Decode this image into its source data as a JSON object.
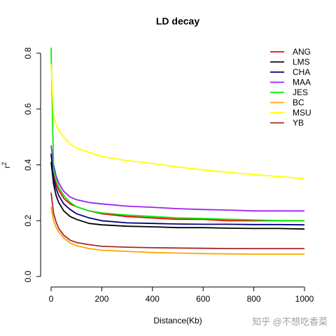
{
  "chart_data": {
    "type": "line",
    "title": "LD decay",
    "xlabel": "Distance(Kb)",
    "ylabel": "r2",
    "xlim": [
      0,
      1000
    ],
    "ylim": [
      0,
      0.8
    ],
    "x_ticks": [
      0,
      200,
      400,
      600,
      800,
      1000
    ],
    "y_ticks": [
      0.0,
      0.2,
      0.4,
      0.6,
      0.8
    ],
    "x_tick_labels": [
      "0",
      "200",
      "400",
      "600",
      "800",
      "1000"
    ],
    "y_tick_labels": [
      "0.0",
      "0.2",
      "0.4",
      "0.6",
      "0.8"
    ],
    "grid": false,
    "legend_position": "top-right",
    "x": [
      0,
      10,
      20,
      30,
      50,
      75,
      100,
      150,
      200,
      300,
      400,
      500,
      600,
      700,
      800,
      900,
      1000
    ],
    "series": [
      {
        "name": "ANG",
        "color": "#ff0000",
        "values": [
          0.44,
          0.36,
          0.33,
          0.31,
          0.28,
          0.26,
          0.25,
          0.235,
          0.225,
          0.215,
          0.21,
          0.205,
          0.205,
          0.2,
          0.2,
          0.2,
          0.2
        ]
      },
      {
        "name": "LMS",
        "color": "#000000",
        "values": [
          0.41,
          0.33,
          0.29,
          0.265,
          0.235,
          0.215,
          0.205,
          0.19,
          0.185,
          0.18,
          0.178,
          0.175,
          0.175,
          0.173,
          0.172,
          0.172,
          0.17
        ]
      },
      {
        "name": "CHA",
        "color": "#000080",
        "values": [
          0.44,
          0.35,
          0.315,
          0.29,
          0.26,
          0.24,
          0.225,
          0.21,
          0.2,
          0.192,
          0.19,
          0.188,
          0.187,
          0.187,
          0.186,
          0.186,
          0.185
        ]
      },
      {
        "name": "MAA",
        "color": "#a020f0",
        "values": [
          0.47,
          0.4,
          0.36,
          0.335,
          0.305,
          0.285,
          0.275,
          0.265,
          0.26,
          0.252,
          0.248,
          0.243,
          0.24,
          0.238,
          0.235,
          0.235,
          0.235
        ]
      },
      {
        "name": "JES",
        "color": "#00ee00",
        "values": [
          0.82,
          0.38,
          0.345,
          0.32,
          0.29,
          0.265,
          0.25,
          0.235,
          0.228,
          0.22,
          0.215,
          0.21,
          0.208,
          0.205,
          0.203,
          0.2,
          0.2
        ]
      },
      {
        "name": "BC",
        "color": "#ffa500",
        "values": [
          0.25,
          0.2,
          0.175,
          0.16,
          0.138,
          0.12,
          0.11,
          0.1,
          0.094,
          0.09,
          0.086,
          0.084,
          0.082,
          0.081,
          0.08,
          0.08,
          0.08
        ]
      },
      {
        "name": "MSU",
        "color": "#ffff00",
        "values": [
          0.76,
          0.57,
          0.545,
          0.525,
          0.5,
          0.475,
          0.46,
          0.445,
          0.43,
          0.415,
          0.405,
          0.392,
          0.382,
          0.373,
          0.365,
          0.358,
          0.35
        ]
      },
      {
        "name": "YB",
        "color": "#a52a2a",
        "values": [
          0.3,
          0.225,
          0.195,
          0.172,
          0.148,
          0.13,
          0.122,
          0.114,
          0.108,
          0.105,
          0.103,
          0.102,
          0.101,
          0.1,
          0.1,
          0.1,
          0.1
        ]
      }
    ]
  },
  "watermark": "知乎 @不想吃香菜"
}
